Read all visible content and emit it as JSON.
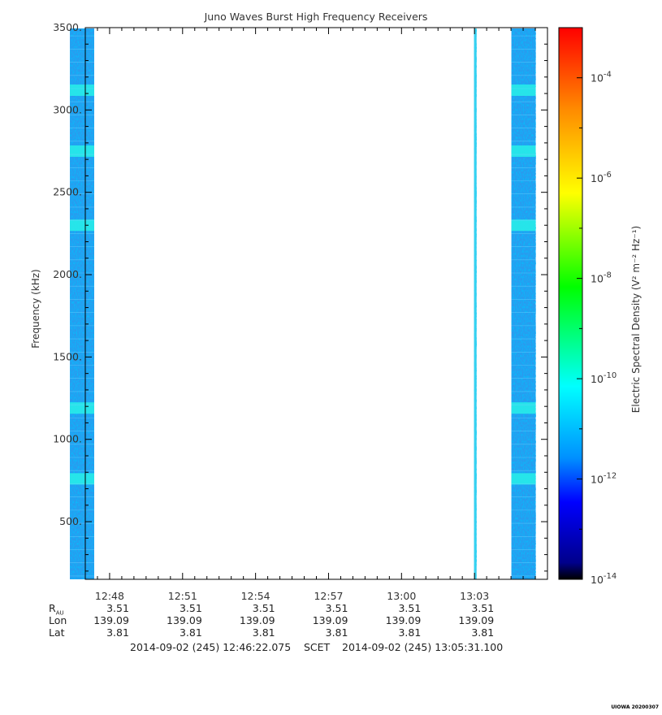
{
  "chart_data": {
    "type": "heatmap",
    "title": "Juno Waves Burst High Frequency Receivers",
    "ylabel": "Frequency (kHz)",
    "ylim": [
      150,
      3500
    ],
    "yticks": [
      500,
      1000,
      1500,
      2000,
      2500,
      3000,
      3500
    ],
    "ytick_labels": [
      "500.",
      "1000.",
      "1500.",
      "2000.",
      "2500.",
      "3000.",
      "3500."
    ],
    "xlim_seconds_of_day": [
      46020,
      47160
    ],
    "xticks_labels": [
      "12:48",
      "12:51",
      "12:54",
      "12:57",
      "13:00",
      "13:03"
    ],
    "data_segments": [
      {
        "start": "12:46:22",
        "end": "12:47:22"
      },
      {
        "start": "13:02:59",
        "end": "13:03:05"
      },
      {
        "start": "13:04:31",
        "end": "13:05:31"
      }
    ],
    "bright_bands_khz": [
      3120,
      2750,
      2300,
      1190,
      760
    ],
    "colorbar": {
      "label": "Electric Spectral Density (V² m⁻² Hz⁻¹)",
      "min_exp": -14,
      "max_exp": -3,
      "tick_exps": [
        -14,
        -12,
        -10,
        -8,
        -6,
        -4
      ],
      "colors": [
        "#000000",
        "#00008b",
        "#0000ff",
        "#0090ff",
        "#00ffff",
        "#00ff00",
        "#ffff00",
        "#ff8c00",
        "#ff0000"
      ]
    }
  },
  "ephemeris": {
    "labels": [
      "R",
      "AU",
      "Lon",
      "Lat"
    ],
    "rows": {
      "rau": [
        "3.51",
        "3.51",
        "3.51",
        "3.51",
        "3.51",
        "3.51"
      ],
      "lon": [
        "139.09",
        "139.09",
        "139.09",
        "139.09",
        "139.09",
        "139.09"
      ],
      "lat": [
        "3.81",
        "3.81",
        "3.81",
        "3.81",
        "3.81",
        "3.81"
      ]
    }
  },
  "footer": {
    "start": "2014-09-02 (245) 12:46:22.075",
    "scet": "SCET",
    "end": "2014-09-02 (245) 13:05:31.100"
  },
  "signature": "UIOWA 20200307"
}
